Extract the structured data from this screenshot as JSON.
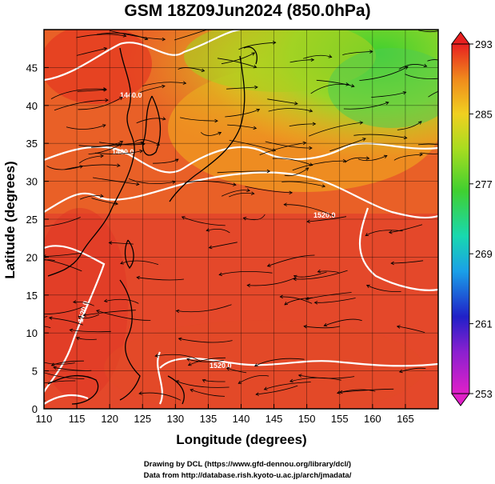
{
  "title": "GSM 18Z09Jun2024 (850.0hPa)",
  "xlabel": "Longitude (degrees)",
  "ylabel": "Latitude  (degrees)",
  "x_ticks": [
    "110",
    "115",
    "120",
    "125",
    "130",
    "135",
    "140",
    "145",
    "150",
    "155",
    "160",
    "165"
  ],
  "y_ticks": [
    "0",
    "5",
    "10",
    "15",
    "20",
    "25",
    "30",
    "35",
    "40",
    "45"
  ],
  "colorbar_ticks": [
    "293",
    "285",
    "277",
    "269",
    "261",
    "253"
  ],
  "contour_labels": [
    "1440.0",
    "1480.0",
    "1520.0",
    "1520.0",
    "1520.0"
  ],
  "credit_line1": "Drawing by DCL (https://www.gfd-dennou.org/library/dcl/)",
  "credit_line2": "Data from http://database.rish.kyoto-u.ac.jp/arch/jmadata/",
  "colors": {
    "warm": "#e8452a",
    "hot": "#e23424",
    "orange": "#f08a1c",
    "yellow": "#d8d41a",
    "green": "#5bd22a",
    "contour": "#ffffff",
    "coast": "#000000"
  },
  "map_extent": {
    "lon": [
      110,
      170
    ],
    "lat": [
      0,
      50
    ]
  }
}
